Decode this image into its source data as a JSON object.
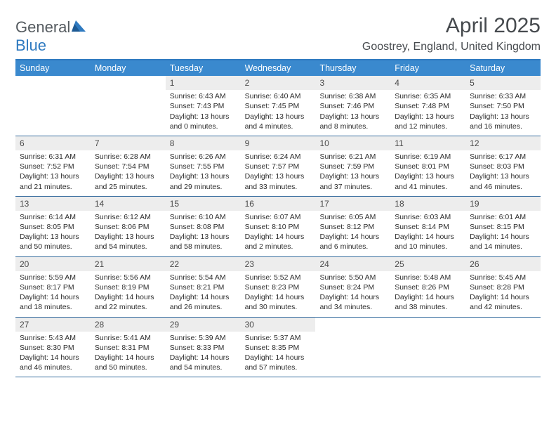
{
  "logo": {
    "text1": "General",
    "text2": "Blue"
  },
  "title": "April 2025",
  "location": "Goostrey, England, United Kingdom",
  "colors": {
    "header_bg": "#3a89ce",
    "header_border": "#2f7ac0",
    "week_border": "#3a6fa0",
    "daynum_bg": "#ededed",
    "text": "#2d2d2d",
    "title_text": "#464a4e"
  },
  "weekdays": [
    "Sunday",
    "Monday",
    "Tuesday",
    "Wednesday",
    "Thursday",
    "Friday",
    "Saturday"
  ],
  "weeks": [
    [
      {
        "n": "",
        "sunrise": "",
        "sunset": "",
        "daylight": ""
      },
      {
        "n": "",
        "sunrise": "",
        "sunset": "",
        "daylight": ""
      },
      {
        "n": "1",
        "sunrise": "Sunrise: 6:43 AM",
        "sunset": "Sunset: 7:43 PM",
        "daylight": "Daylight: 13 hours and 0 minutes."
      },
      {
        "n": "2",
        "sunrise": "Sunrise: 6:40 AM",
        "sunset": "Sunset: 7:45 PM",
        "daylight": "Daylight: 13 hours and 4 minutes."
      },
      {
        "n": "3",
        "sunrise": "Sunrise: 6:38 AM",
        "sunset": "Sunset: 7:46 PM",
        "daylight": "Daylight: 13 hours and 8 minutes."
      },
      {
        "n": "4",
        "sunrise": "Sunrise: 6:35 AM",
        "sunset": "Sunset: 7:48 PM",
        "daylight": "Daylight: 13 hours and 12 minutes."
      },
      {
        "n": "5",
        "sunrise": "Sunrise: 6:33 AM",
        "sunset": "Sunset: 7:50 PM",
        "daylight": "Daylight: 13 hours and 16 minutes."
      }
    ],
    [
      {
        "n": "6",
        "sunrise": "Sunrise: 6:31 AM",
        "sunset": "Sunset: 7:52 PM",
        "daylight": "Daylight: 13 hours and 21 minutes."
      },
      {
        "n": "7",
        "sunrise": "Sunrise: 6:28 AM",
        "sunset": "Sunset: 7:54 PM",
        "daylight": "Daylight: 13 hours and 25 minutes."
      },
      {
        "n": "8",
        "sunrise": "Sunrise: 6:26 AM",
        "sunset": "Sunset: 7:55 PM",
        "daylight": "Daylight: 13 hours and 29 minutes."
      },
      {
        "n": "9",
        "sunrise": "Sunrise: 6:24 AM",
        "sunset": "Sunset: 7:57 PM",
        "daylight": "Daylight: 13 hours and 33 minutes."
      },
      {
        "n": "10",
        "sunrise": "Sunrise: 6:21 AM",
        "sunset": "Sunset: 7:59 PM",
        "daylight": "Daylight: 13 hours and 37 minutes."
      },
      {
        "n": "11",
        "sunrise": "Sunrise: 6:19 AM",
        "sunset": "Sunset: 8:01 PM",
        "daylight": "Daylight: 13 hours and 41 minutes."
      },
      {
        "n": "12",
        "sunrise": "Sunrise: 6:17 AM",
        "sunset": "Sunset: 8:03 PM",
        "daylight": "Daylight: 13 hours and 46 minutes."
      }
    ],
    [
      {
        "n": "13",
        "sunrise": "Sunrise: 6:14 AM",
        "sunset": "Sunset: 8:05 PM",
        "daylight": "Daylight: 13 hours and 50 minutes."
      },
      {
        "n": "14",
        "sunrise": "Sunrise: 6:12 AM",
        "sunset": "Sunset: 8:06 PM",
        "daylight": "Daylight: 13 hours and 54 minutes."
      },
      {
        "n": "15",
        "sunrise": "Sunrise: 6:10 AM",
        "sunset": "Sunset: 8:08 PM",
        "daylight": "Daylight: 13 hours and 58 minutes."
      },
      {
        "n": "16",
        "sunrise": "Sunrise: 6:07 AM",
        "sunset": "Sunset: 8:10 PM",
        "daylight": "Daylight: 14 hours and 2 minutes."
      },
      {
        "n": "17",
        "sunrise": "Sunrise: 6:05 AM",
        "sunset": "Sunset: 8:12 PM",
        "daylight": "Daylight: 14 hours and 6 minutes."
      },
      {
        "n": "18",
        "sunrise": "Sunrise: 6:03 AM",
        "sunset": "Sunset: 8:14 PM",
        "daylight": "Daylight: 14 hours and 10 minutes."
      },
      {
        "n": "19",
        "sunrise": "Sunrise: 6:01 AM",
        "sunset": "Sunset: 8:15 PM",
        "daylight": "Daylight: 14 hours and 14 minutes."
      }
    ],
    [
      {
        "n": "20",
        "sunrise": "Sunrise: 5:59 AM",
        "sunset": "Sunset: 8:17 PM",
        "daylight": "Daylight: 14 hours and 18 minutes."
      },
      {
        "n": "21",
        "sunrise": "Sunrise: 5:56 AM",
        "sunset": "Sunset: 8:19 PM",
        "daylight": "Daylight: 14 hours and 22 minutes."
      },
      {
        "n": "22",
        "sunrise": "Sunrise: 5:54 AM",
        "sunset": "Sunset: 8:21 PM",
        "daylight": "Daylight: 14 hours and 26 minutes."
      },
      {
        "n": "23",
        "sunrise": "Sunrise: 5:52 AM",
        "sunset": "Sunset: 8:23 PM",
        "daylight": "Daylight: 14 hours and 30 minutes."
      },
      {
        "n": "24",
        "sunrise": "Sunrise: 5:50 AM",
        "sunset": "Sunset: 8:24 PM",
        "daylight": "Daylight: 14 hours and 34 minutes."
      },
      {
        "n": "25",
        "sunrise": "Sunrise: 5:48 AM",
        "sunset": "Sunset: 8:26 PM",
        "daylight": "Daylight: 14 hours and 38 minutes."
      },
      {
        "n": "26",
        "sunrise": "Sunrise: 5:45 AM",
        "sunset": "Sunset: 8:28 PM",
        "daylight": "Daylight: 14 hours and 42 minutes."
      }
    ],
    [
      {
        "n": "27",
        "sunrise": "Sunrise: 5:43 AM",
        "sunset": "Sunset: 8:30 PM",
        "daylight": "Daylight: 14 hours and 46 minutes."
      },
      {
        "n": "28",
        "sunrise": "Sunrise: 5:41 AM",
        "sunset": "Sunset: 8:31 PM",
        "daylight": "Daylight: 14 hours and 50 minutes."
      },
      {
        "n": "29",
        "sunrise": "Sunrise: 5:39 AM",
        "sunset": "Sunset: 8:33 PM",
        "daylight": "Daylight: 14 hours and 54 minutes."
      },
      {
        "n": "30",
        "sunrise": "Sunrise: 5:37 AM",
        "sunset": "Sunset: 8:35 PM",
        "daylight": "Daylight: 14 hours and 57 minutes."
      },
      {
        "n": "",
        "sunrise": "",
        "sunset": "",
        "daylight": ""
      },
      {
        "n": "",
        "sunrise": "",
        "sunset": "",
        "daylight": ""
      },
      {
        "n": "",
        "sunrise": "",
        "sunset": "",
        "daylight": ""
      }
    ]
  ]
}
